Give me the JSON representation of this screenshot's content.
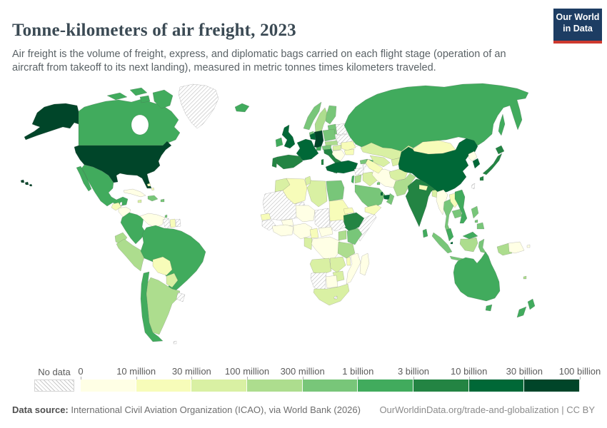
{
  "header": {
    "title": "Tonne-kilometers of air freight, 2023",
    "subtitle": "Air freight is the volume of freight, express, and diplomatic bags carried on each flight stage (operation of an aircraft from takeoff to its next landing), measured in metric tonnes times kilometers traveled.",
    "logo_line1": "Our World",
    "logo_line2": "in Data",
    "logo_bg": "#1d3d63",
    "logo_accent": "#ce392f"
  },
  "legend": {
    "no_data_label": "No data"
  },
  "footer": {
    "source_label": "Data source:",
    "source_text": " International Civil Aviation Organization (ICAO), via World Bank (2026)",
    "right_text": "OurWorldinData.org/trade-and-globalization | CC BY"
  },
  "chart_data": {
    "type": "choropleth_map",
    "title": "Tonne-kilometers of air freight, 2023",
    "unit": "metric tonnes times kilometers traveled",
    "bins": [
      "0",
      "10 million",
      "30 million",
      "100 million",
      "300 million",
      "1 billion",
      "3 billion",
      "10 billion",
      "30 billion",
      "100 billion"
    ],
    "bin_colors": [
      "#ffffe5",
      "#f7fcb9",
      "#d9f0a3",
      "#addd8e",
      "#78c679",
      "#41ab5d",
      "#238443",
      "#006837",
      "#004529"
    ],
    "no_data_style": "gray diagonal hatch",
    "legend_note": "tier N means value between bins[N-1] and bins[N]; 0 = no data",
    "regions": {
      "usa": 9,
      "canada": 6,
      "greenland": 0,
      "mexico": 6,
      "guatemala": 2,
      "belize": 0,
      "honduras-nicaragua": 1,
      "costa-rica": 5,
      "panama": 6,
      "cuba": 1,
      "jamaica": 3,
      "hispaniola": 5,
      "puerto-rico": 5,
      "bahamas": 2,
      "trinidad": 5,
      "colombia": 6,
      "venezuela": 1,
      "guyana": 0,
      "suriname": 2,
      "french-guiana": 0,
      "ecuador": 4,
      "peru": 4,
      "brazil": 6,
      "bolivia": 2,
      "paraguay": 3,
      "chile": 6,
      "argentina": 4,
      "uruguay": 0,
      "falkland": 0,
      "iceland": 6,
      "ireland": 6,
      "uk": 8,
      "norway": 5,
      "sweden": 4,
      "finland": 5,
      "denmark": 5,
      "baltics": 5,
      "belarus": 0,
      "ukraine": 0,
      "poland": 5,
      "germany": 9,
      "benelux": 8,
      "france": 8,
      "spain": 7,
      "portugal": 7,
      "italy": 7,
      "switzerland": 6,
      "austria": 5,
      "czech-slovakia": 4,
      "hungary": 3,
      "romania": 2,
      "balkans": 1,
      "greece": 2,
      "bulgaria": 2,
      "turkey": 8,
      "russia": 6,
      "morocco": 3,
      "western-sahara-mali": 0,
      "algeria": 2,
      "tunisia": 3,
      "libya": 3,
      "egypt": 5,
      "niger": 1,
      "chad": 0,
      "sudan": 2,
      "eritrea": 2,
      "ethiopia": 7,
      "somalia": 0,
      "south-sudan": 0,
      "senegal": 2,
      "guinea": 0,
      "ghana-ivory-coast": 1,
      "burkina": 1,
      "nigeria": 1,
      "cameroon": 2,
      "central-african-republic": 1,
      "dr-congo": 1,
      "congo-gabon": 3,
      "uganda": 4,
      "kenya": 5,
      "tanzania": 4,
      "angola": 3,
      "zambia": 3,
      "malawi": 2,
      "mozambique": 1,
      "zimbabwe": 3,
      "namibia": 0,
      "botswana": 1,
      "south-africa": 3,
      "lesotho": 0,
      "madagascar": 1,
      "syria": 0,
      "israel": 6,
      "jordan": 4,
      "iraq": 3,
      "saudi-arabia": 5,
      "kuwait": 5,
      "qatar": 8,
      "uae": 8,
      "oman": 5,
      "yemen": 2,
      "iran": 1,
      "georgia": 5,
      "azerbaijan": 6,
      "armenia": 0,
      "kazakhstan": 3,
      "uzbekistan": 3,
      "turkmenistan": 2,
      "kyrgyzstan-tajikistan": 3,
      "afghanistan": 3,
      "pakistan": 4,
      "india": 7,
      "nepal": 2,
      "bangladesh": 3,
      "sri-lanka": 6,
      "china": 8,
      "mongolia": 2,
      "north-korea": 1,
      "south-korea": 8,
      "japan": 7,
      "taiwan": 0,
      "myanmar": 1,
      "thailand": 5,
      "laos": 2,
      "cambodia": 5,
      "vietnam": 6,
      "malaysia": 6,
      "singapore": 8,
      "indonesia": 5,
      "indonesia-east": 4,
      "philippines": 5,
      "papua-new-guinea": 1,
      "australia": 6,
      "new-zealand": 6,
      "fiji": 4
    }
  }
}
